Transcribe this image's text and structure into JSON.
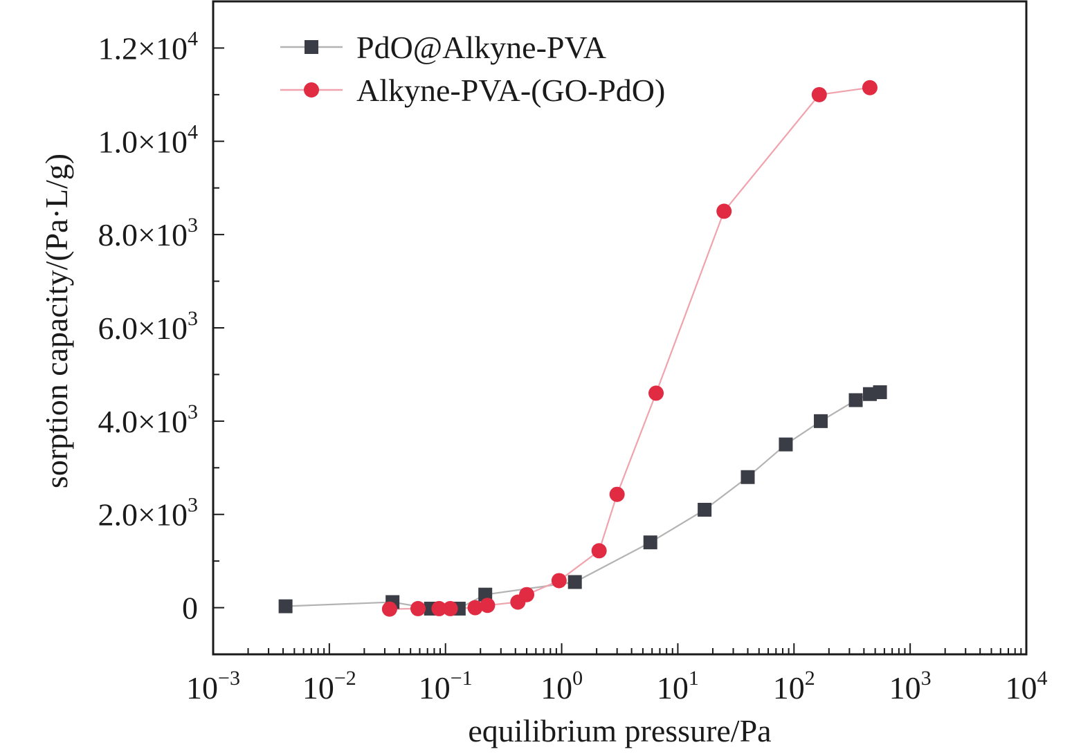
{
  "chart_data": {
    "type": "scatter",
    "xscale": "log",
    "xlim": [
      0.001,
      10000
    ],
    "ylim": [
      -1000,
      13000
    ],
    "xlabel": "equilibrium pressure/Pa",
    "ylabel": "sorption capacity/(Pa·L/g)",
    "grid": false,
    "legend_position": "top-left",
    "x_ticks": [
      {
        "value": 0.001,
        "base": "10",
        "exp": "−3"
      },
      {
        "value": 0.01,
        "base": "10",
        "exp": "−2"
      },
      {
        "value": 0.1,
        "base": "10",
        "exp": "−1"
      },
      {
        "value": 1,
        "base": "10",
        "exp": "0"
      },
      {
        "value": 10,
        "base": "10",
        "exp": "1"
      },
      {
        "value": 100,
        "base": "10",
        "exp": "2"
      },
      {
        "value": 1000,
        "base": "10",
        "exp": "3"
      },
      {
        "value": 10000,
        "base": "10",
        "exp": "4"
      }
    ],
    "y_ticks": [
      {
        "value": 0,
        "mant": "0",
        "exp": ""
      },
      {
        "value": 2000,
        "mant": "2.0×10",
        "exp": "3"
      },
      {
        "value": 4000,
        "mant": "4.0×10",
        "exp": "3"
      },
      {
        "value": 6000,
        "mant": "6.0×10",
        "exp": "3"
      },
      {
        "value": 8000,
        "mant": "8.0×10",
        "exp": "3"
      },
      {
        "value": 10000,
        "mant": "1.0×10",
        "exp": "4"
      },
      {
        "value": 12000,
        "mant": "1.2×10",
        "exp": "4"
      }
    ],
    "series": [
      {
        "name": "PdO@Alkyne-PVA",
        "marker": "square",
        "color": "#3a3d45",
        "line_color": "#b3b3b3",
        "x": [
          0.0042,
          0.035,
          0.075,
          0.13,
          0.22,
          1.3,
          5.8,
          17,
          40,
          85,
          170,
          340,
          450,
          550
        ],
        "y": [
          30,
          120,
          -20,
          -20,
          280,
          550,
          1400,
          2100,
          2800,
          3500,
          4000,
          4450,
          4580,
          4620
        ]
      },
      {
        "name": "Alkyne-PVA-(GO-PdO)",
        "marker": "circle",
        "color": "#e02b42",
        "line_color": "#f0a3ad",
        "x": [
          0.033,
          0.058,
          0.088,
          0.11,
          0.18,
          0.23,
          0.42,
          0.5,
          0.95,
          2.1,
          3.0,
          6.5,
          25,
          165,
          450
        ],
        "y": [
          -30,
          -20,
          -20,
          -20,
          0,
          50,
          120,
          280,
          580,
          1220,
          2430,
          4600,
          8500,
          11000,
          11150
        ]
      }
    ]
  }
}
